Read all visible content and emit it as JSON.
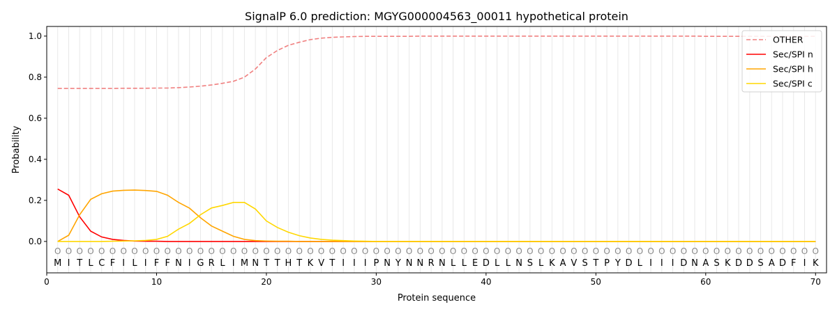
{
  "chart_data": {
    "type": "line",
    "title": "SignalP 6.0 prediction: MGYG000004563_00011 hypothetical protein",
    "xlabel": "Protein sequence",
    "ylabel": "Probability",
    "xlim": [
      0,
      71
    ],
    "ylim": [
      -0.153,
      1.047
    ],
    "xticks": [
      0,
      10,
      20,
      30,
      40,
      50,
      60,
      70
    ],
    "yticks": [
      0.0,
      0.2,
      0.4,
      0.6,
      0.8,
      1.0
    ],
    "ytick_labels": [
      "0.0",
      "0.2",
      "0.4",
      "0.6",
      "0.8",
      "1.0"
    ],
    "grid": "vertical per residue",
    "legend_position": "top-right",
    "sequence": [
      "M",
      "I",
      "T",
      "L",
      "C",
      "F",
      "I",
      "L",
      "I",
      "F",
      "F",
      "N",
      "I",
      "G",
      "R",
      "L",
      "I",
      "M",
      "N",
      "T",
      "T",
      "H",
      "T",
      "K",
      "V",
      "T",
      "I",
      "I",
      "I",
      "P",
      "N",
      "Y",
      "N",
      "N",
      "R",
      "N",
      "L",
      "L",
      "E",
      "D",
      "L",
      "L",
      "N",
      "S",
      "L",
      "K",
      "A",
      "V",
      "S",
      "T",
      "P",
      "Y",
      "D",
      "L",
      "I",
      "I",
      "I",
      "D",
      "N",
      "A",
      "S",
      "K",
      "D",
      "D",
      "S",
      "A",
      "D",
      "F",
      "I",
      "K"
    ],
    "region_marker": "O",
    "series": [
      {
        "name": "OTHER",
        "color": "#f08080",
        "dash": true,
        "values": [
          0.745,
          0.745,
          0.745,
          0.745,
          0.745,
          0.745,
          0.746,
          0.746,
          0.746,
          0.747,
          0.747,
          0.749,
          0.752,
          0.756,
          0.762,
          0.77,
          0.78,
          0.8,
          0.84,
          0.895,
          0.93,
          0.955,
          0.97,
          0.983,
          0.99,
          0.994,
          0.996,
          0.998,
          0.999,
          0.999,
          0.999,
          0.999,
          0.999,
          1.0,
          1.0,
          1.0,
          1.0,
          1.0,
          1.0,
          1.0,
          1.0,
          1.0,
          1.0,
          1.0,
          1.0,
          1.0,
          1.0,
          1.0,
          1.0,
          1.0,
          1.0,
          1.0,
          1.0,
          1.0,
          1.0,
          1.0,
          1.0,
          1.0,
          1.0,
          0.999,
          0.999,
          0.999,
          0.999,
          0.999,
          0.999,
          0.999,
          0.999,
          0.999,
          0.999,
          0.999
        ]
      },
      {
        "name": "Sec/SPI n",
        "color": "#ff0000",
        "dash": false,
        "values": [
          0.255,
          0.225,
          0.12,
          0.05,
          0.022,
          0.01,
          0.005,
          0.002,
          0.001,
          0.001,
          0,
          0,
          0,
          0,
          0,
          0,
          0,
          0,
          0,
          0,
          0,
          0,
          0,
          0,
          0,
          0,
          0,
          0,
          0,
          0,
          0,
          0,
          0,
          0,
          0,
          0,
          0,
          0,
          0,
          0,
          0,
          0,
          0,
          0,
          0,
          0,
          0,
          0,
          0,
          0,
          0,
          0,
          0,
          0,
          0,
          0,
          0,
          0,
          0,
          0,
          0,
          0,
          0,
          0,
          0,
          0,
          0,
          0,
          0,
          0
        ]
      },
      {
        "name": "Sec/SPI h",
        "color": "#ffa500",
        "dash": false,
        "values": [
          0,
          0.03,
          0.13,
          0.205,
          0.232,
          0.245,
          0.249,
          0.25,
          0.248,
          0.244,
          0.225,
          0.19,
          0.162,
          0.115,
          0.075,
          0.05,
          0.025,
          0.01,
          0.004,
          0.002,
          0.001,
          0.001,
          0,
          0,
          0,
          0,
          0,
          0,
          0,
          0,
          0,
          0,
          0,
          0,
          0,
          0,
          0,
          0,
          0,
          0,
          0,
          0,
          0,
          0,
          0,
          0,
          0,
          0,
          0,
          0,
          0,
          0,
          0,
          0,
          0,
          0,
          0,
          0,
          0,
          0,
          0,
          0,
          0,
          0,
          0,
          0,
          0,
          0,
          0,
          0
        ]
      },
      {
        "name": "Sec/SPI c",
        "color": "#ffd700",
        "dash": false,
        "values": [
          0,
          0,
          0,
          0,
          0,
          0.001,
          0.002,
          0.003,
          0.005,
          0.01,
          0.025,
          0.06,
          0.088,
          0.13,
          0.163,
          0.175,
          0.19,
          0.19,
          0.158,
          0.1,
          0.068,
          0.045,
          0.028,
          0.017,
          0.01,
          0.006,
          0.004,
          0.002,
          0.001,
          0,
          0,
          0,
          0,
          0,
          0,
          0,
          0,
          0,
          0,
          0,
          0,
          0,
          0,
          0,
          0,
          0,
          0,
          0,
          0,
          0,
          0,
          0,
          0,
          0,
          0,
          0,
          0,
          0,
          0,
          0,
          0,
          0,
          0,
          0,
          0,
          0,
          0,
          0,
          0,
          0
        ]
      }
    ]
  }
}
